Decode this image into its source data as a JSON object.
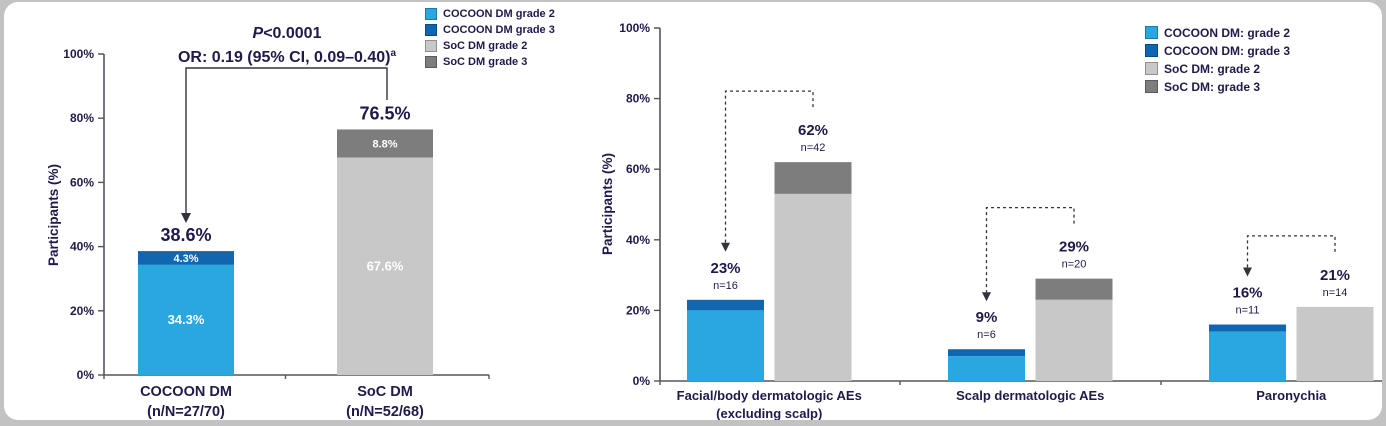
{
  "slide": {
    "background_color": "#c2c2c2",
    "card_color": "#ffffff"
  },
  "colors": {
    "cocoon_grade2": "#29a8e0",
    "cocoon_grade3": "#0f67b1",
    "soc_grade2": "#c8c8c8",
    "soc_grade3": "#7d7d7d",
    "text": "#1e1a4a",
    "axis": "#55555f",
    "connector": "#33333d",
    "bar_label_light": "#ffffff"
  },
  "chart_data": [
    {
      "id": "dm_overall",
      "type": "bar",
      "stacked": true,
      "title": "",
      "ylabel": "Participants (%)",
      "ylim": [
        0,
        100
      ],
      "yticks": [
        "0%",
        "20%",
        "40%",
        "60%",
        "80%",
        "100%"
      ],
      "ytick_values": [
        0,
        20,
        40,
        60,
        80,
        100
      ],
      "grid": false,
      "legend_position": "top-right",
      "legend": [
        {
          "label": "COCOON DM grade 2",
          "color_key": "cocoon_grade2"
        },
        {
          "label": "COCOON DM grade 3",
          "color_key": "cocoon_grade3"
        },
        {
          "label": "SoC DM grade 2",
          "color_key": "soc_grade2"
        },
        {
          "label": "SoC DM grade 3",
          "color_key": "soc_grade3"
        }
      ],
      "annotations": {
        "p_value_prefix": "P",
        "p_value_rest": "<0.0001",
        "odds_ratio": "OR: 0.19 (95% CI, 0.09–0.40)",
        "odds_ratio_footnote": "a"
      },
      "bars": [
        {
          "category_line1": "COCOON DM",
          "category_line2": "(n/N=27/70)",
          "total": 38.6,
          "total_label": "38.6%",
          "segments": [
            {
              "name": "grade 2",
              "value": 34.3,
              "label": "34.3%",
              "color_key": "cocoon_grade2"
            },
            {
              "name": "grade 3",
              "value": 4.3,
              "label": "4.3%",
              "color_key": "cocoon_grade3"
            }
          ]
        },
        {
          "category_line1": "SoC DM",
          "category_line2": "(n/N=52/68)",
          "total": 76.5,
          "total_label": "76.5%",
          "segments": [
            {
              "name": "grade 2",
              "value": 67.6,
              "label": "67.6%",
              "color_key": "soc_grade2"
            },
            {
              "name": "grade 3",
              "value": 8.8,
              "label": "8.8%",
              "color_key": "soc_grade3"
            }
          ]
        }
      ]
    },
    {
      "id": "dm_by_ae_type",
      "type": "bar",
      "stacked": true,
      "grouped": true,
      "title": "",
      "ylabel": "Participants (%)",
      "ylim": [
        0,
        100
      ],
      "yticks": [
        "0%",
        "20%",
        "40%",
        "60%",
        "80%",
        "100%"
      ],
      "ytick_values": [
        0,
        20,
        40,
        60,
        80,
        100
      ],
      "grid": false,
      "legend_position": "top-right",
      "legend": [
        {
          "label": "COCOON DM: grade 2",
          "color_key": "cocoon_grade2"
        },
        {
          "label": "COCOON DM: grade 3",
          "color_key": "cocoon_grade3"
        },
        {
          "label": "SoC DM: grade 2",
          "color_key": "soc_grade2"
        },
        {
          "label": "SoC DM: grade 3",
          "color_key": "soc_grade3"
        }
      ],
      "groups": [
        {
          "category_line1": "Facial/body dermatologic AEs",
          "category_line2": "(excluding scalp)",
          "cocoon": {
            "total": 23,
            "total_label": "23%",
            "n_label": "n=16",
            "grade3_value_est": 3
          },
          "soc": {
            "total": 62,
            "total_label": "62%",
            "n_label": "n=42",
            "grade3_value_est": 9
          }
        },
        {
          "category_line1": "Scalp dermatologic AEs",
          "category_line2": "",
          "cocoon": {
            "total": 9,
            "total_label": "9%",
            "n_label": "n=6",
            "grade3_value_est": 2
          },
          "soc": {
            "total": 29,
            "total_label": "29%",
            "n_label": "n=20",
            "grade3_value_est": 6
          }
        },
        {
          "category_line1": "Paronychia",
          "category_line2": "",
          "cocoon": {
            "total": 16,
            "total_label": "16%",
            "n_label": "n=11",
            "grade3_value_est": 2
          },
          "soc": {
            "total": 21,
            "total_label": "21%",
            "n_label": "n=14",
            "grade3_value_est": 0
          }
        }
      ]
    }
  ]
}
